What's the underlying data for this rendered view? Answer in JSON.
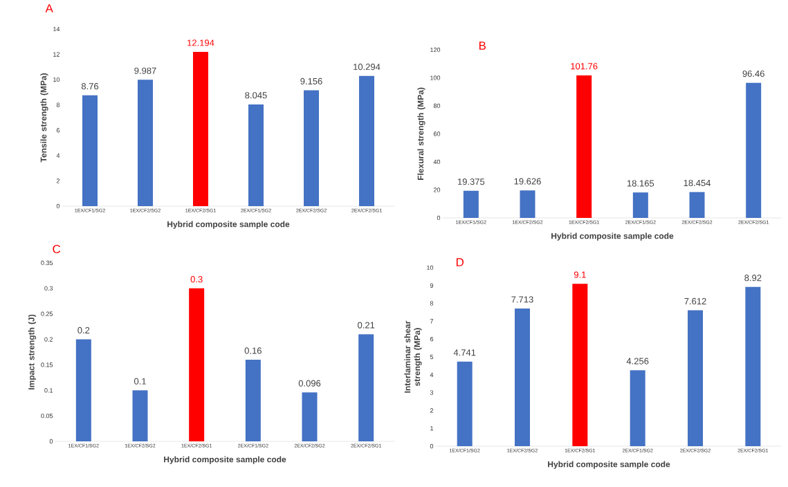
{
  "chart_data": [
    {
      "type": "bar",
      "title": "A",
      "xlabel": "Hybrid composite sample code",
      "ylabel": "Tensile strength (MPa)",
      "categories": [
        "1EX/CF1/SG2",
        "1EX/CF2/SG2",
        "1EX/CF2/SG1",
        "2EX/CF1/SG2",
        "2EX/CF2/SG2",
        "2EX/CF2/SG1"
      ],
      "values": [
        8.76,
        9.987,
        12.194,
        8.045,
        9.156,
        10.294
      ],
      "colors": [
        "#4472c4",
        "#4472c4",
        "#ff0000",
        "#4472c4",
        "#4472c4",
        "#4472c4"
      ],
      "ylim": [
        0,
        14
      ],
      "yticks": [
        0,
        2,
        4,
        6,
        8,
        10,
        12,
        14
      ],
      "data_labels": true
    },
    {
      "type": "bar",
      "title": "B",
      "xlabel": "Hybrid composite sample code",
      "ylabel": "Flexural strength (MPa)",
      "categories": [
        "1EX/CF1/SG2",
        "1EX/CF2/SG2",
        "1EX/CF2/SG1",
        "2EX/CF1/SG2",
        "2EX/CF2/SG2",
        "2EX/CF2/SG1"
      ],
      "values": [
        19.375,
        19.626,
        101.76,
        18.165,
        18.454,
        96.46
      ],
      "colors": [
        "#4472c4",
        "#4472c4",
        "#ff0000",
        "#4472c4",
        "#4472c4",
        "#4472c4"
      ],
      "ylim": [
        0,
        120
      ],
      "yticks": [
        0,
        20,
        40,
        60,
        80,
        100,
        120
      ],
      "data_labels": true
    },
    {
      "type": "bar",
      "title": "C",
      "xlabel": "Hybrid composite sample code",
      "ylabel": "Impact strength (J)",
      "categories": [
        "1EX/CF1/SG2",
        "1EX/CF2/SG2",
        "1EX/CF2/SG1",
        "2EX/CF1/SG2",
        "2EX/CF2/SG2",
        "2EX/CF2/SG1"
      ],
      "values": [
        0.2,
        0.1,
        0.3,
        0.16,
        0.096,
        0.21
      ],
      "colors": [
        "#4472c4",
        "#4472c4",
        "#ff0000",
        "#4472c4",
        "#4472c4",
        "#4472c4"
      ],
      "ylim": [
        0,
        0.35
      ],
      "yticks": [
        0,
        0.05,
        0.1,
        0.15,
        0.2,
        0.25,
        0.3,
        0.35
      ],
      "data_labels": true
    },
    {
      "type": "bar",
      "title": "D",
      "xlabel": "Hybrid composite sample code",
      "ylabel": "Interlaminar shear strength (MPa)",
      "categories": [
        "1EX/CF1/SG2",
        "1EX/CF2/SG2",
        "1EX/CF2/SG1",
        "2EX/CF1/SG2",
        "2EX/CF2/SG2",
        "2EX/CF2/SG1"
      ],
      "values": [
        4.741,
        7.713,
        9.1,
        4.256,
        7.612,
        8.92
      ],
      "colors": [
        "#4472c4",
        "#4472c4",
        "#ff0000",
        "#4472c4",
        "#4472c4",
        "#4472c4"
      ],
      "ylim": [
        0,
        10
      ],
      "yticks": [
        0,
        1,
        2,
        3,
        4,
        5,
        6,
        7,
        8,
        9,
        10
      ],
      "data_labels": true
    }
  ]
}
